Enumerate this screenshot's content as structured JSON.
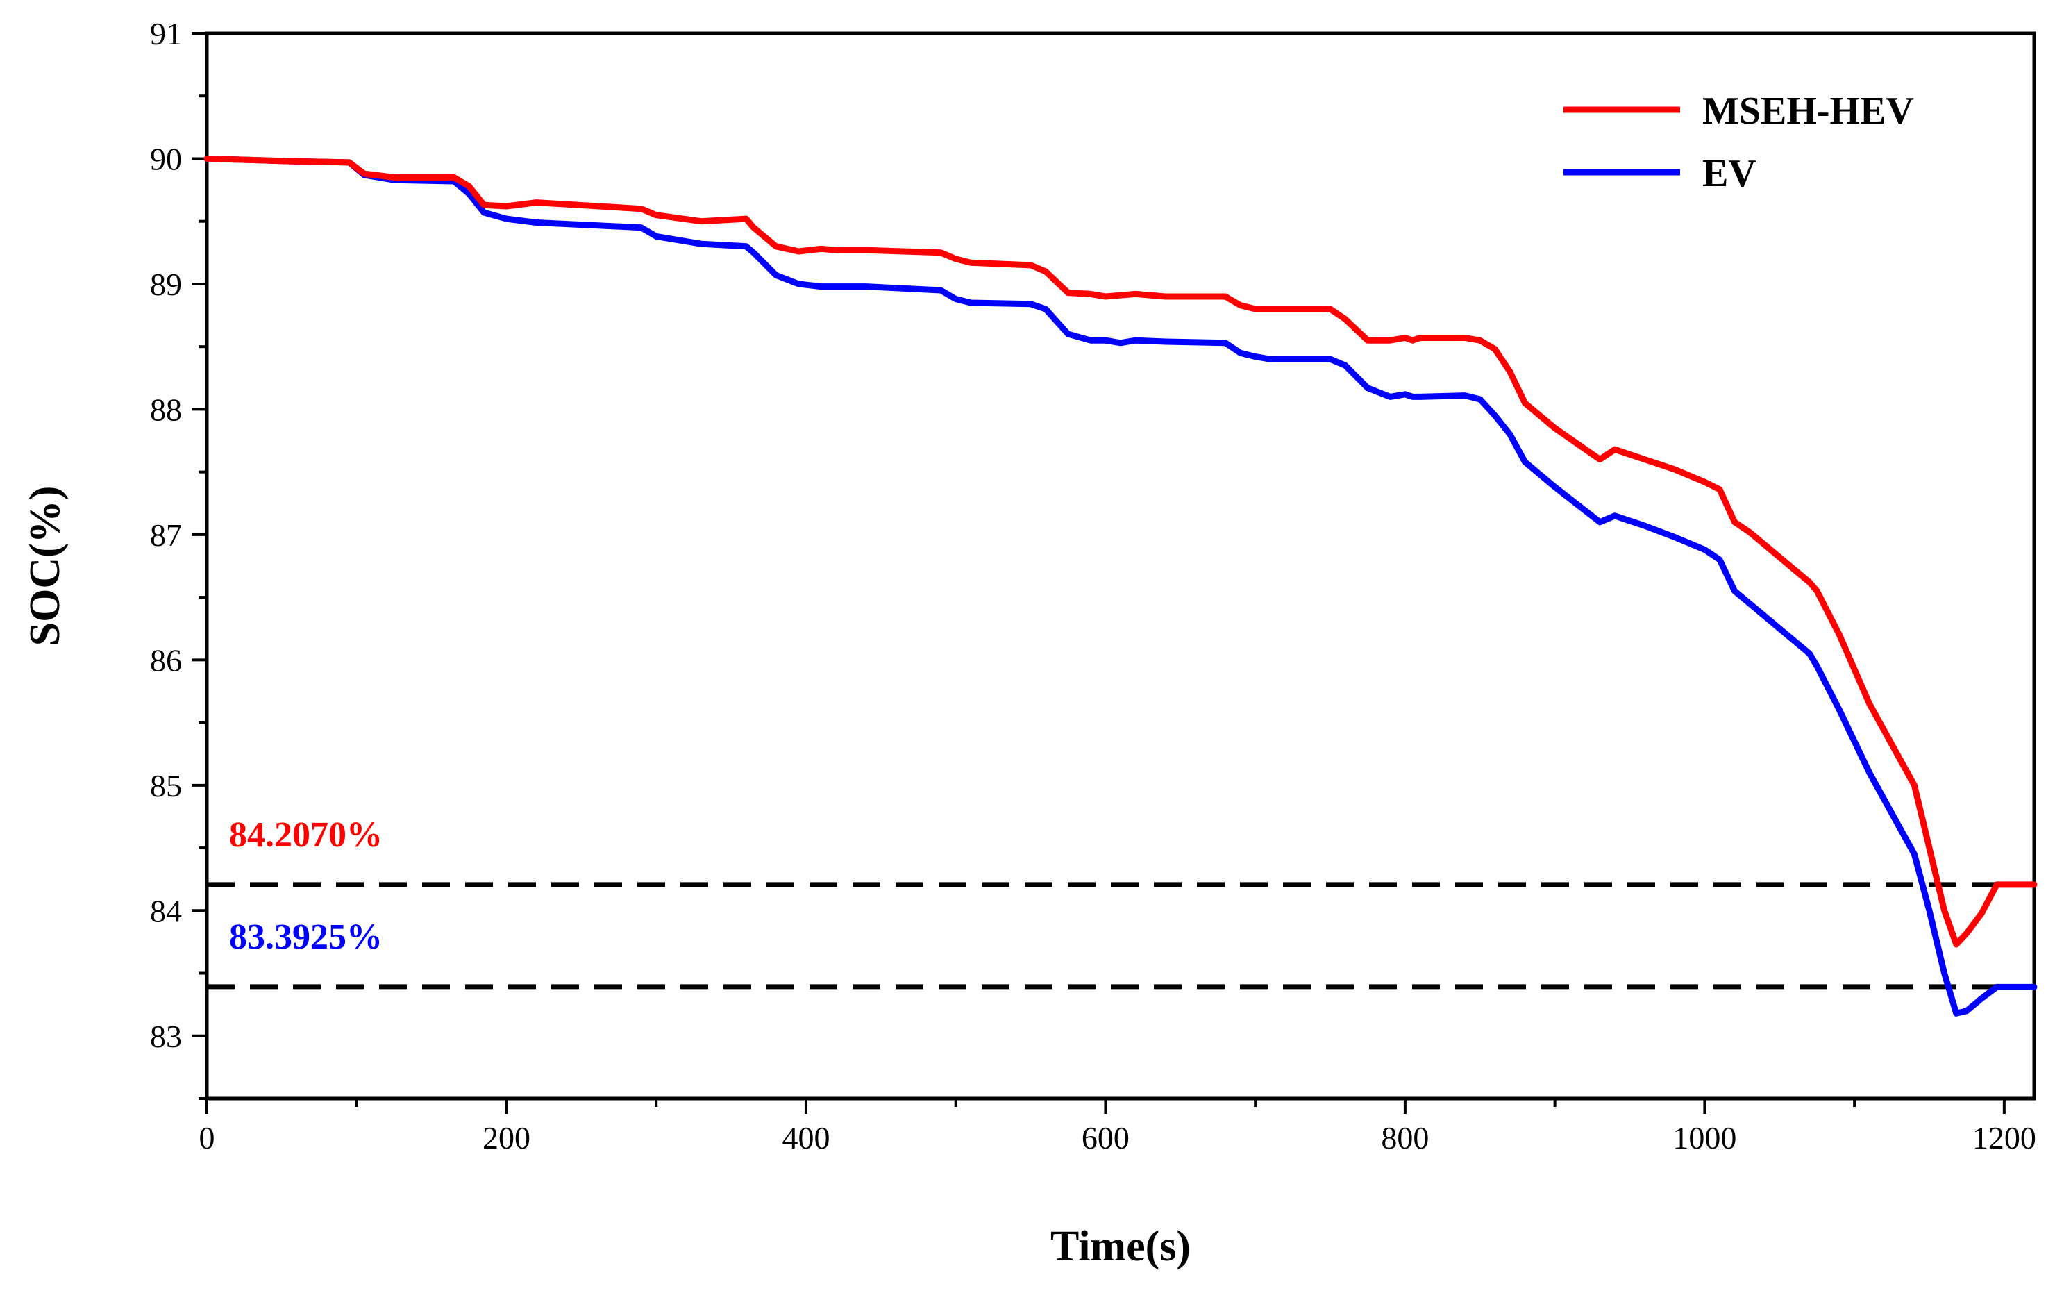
{
  "chart_data": {
    "type": "line",
    "title": "",
    "xlabel": "Time(s)",
    "ylabel": "SOC(%)",
    "xlim": [
      0,
      1220
    ],
    "ylim": [
      82.5,
      91
    ],
    "xticks": [
      0,
      200,
      400,
      600,
      800,
      1000,
      1200
    ],
    "yticks": [
      83,
      84,
      85,
      86,
      87,
      88,
      89,
      90,
      91
    ],
    "legend_position": "top-right",
    "series": [
      {
        "name": "MSEH-HEV",
        "color": "#ff0000",
        "x": [
          0,
          55,
          95,
          105,
          125,
          165,
          175,
          185,
          200,
          220,
          290,
          300,
          330,
          360,
          365,
          380,
          395,
          410,
          420,
          440,
          490,
          500,
          510,
          550,
          560,
          575,
          590,
          600,
          610,
          620,
          640,
          680,
          690,
          700,
          710,
          750,
          760,
          775,
          790,
          800,
          805,
          810,
          840,
          850,
          860,
          870,
          880,
          900,
          930,
          940,
          960,
          980,
          1000,
          1010,
          1020,
          1030,
          1070,
          1075,
          1090,
          1110,
          1140,
          1150,
          1160,
          1168,
          1175,
          1185,
          1195,
          1220
        ],
        "y": [
          90.0,
          89.98,
          89.97,
          89.88,
          89.85,
          89.85,
          89.78,
          89.63,
          89.62,
          89.65,
          89.6,
          89.55,
          89.5,
          89.52,
          89.45,
          89.3,
          89.26,
          89.28,
          89.27,
          89.27,
          89.25,
          89.2,
          89.17,
          89.15,
          89.1,
          88.93,
          88.92,
          88.9,
          88.91,
          88.92,
          88.9,
          88.9,
          88.83,
          88.8,
          88.8,
          88.8,
          88.72,
          88.55,
          88.55,
          88.57,
          88.55,
          88.57,
          88.57,
          88.55,
          88.48,
          88.3,
          88.05,
          87.85,
          87.6,
          87.68,
          87.6,
          87.52,
          87.42,
          87.36,
          87.1,
          87.02,
          86.62,
          86.55,
          86.2,
          85.65,
          85.0,
          84.5,
          84.0,
          83.73,
          83.82,
          83.98,
          84.207,
          84.207
        ]
      },
      {
        "name": "EV",
        "color": "#0000ff",
        "x": [
          0,
          55,
          95,
          105,
          125,
          165,
          175,
          185,
          200,
          220,
          290,
          300,
          330,
          360,
          365,
          380,
          395,
          410,
          420,
          440,
          490,
          500,
          510,
          550,
          560,
          575,
          590,
          600,
          610,
          620,
          640,
          680,
          690,
          700,
          710,
          750,
          760,
          775,
          790,
          800,
          805,
          810,
          840,
          850,
          860,
          870,
          880,
          900,
          930,
          940,
          960,
          980,
          1000,
          1010,
          1020,
          1030,
          1070,
          1075,
          1090,
          1110,
          1140,
          1150,
          1160,
          1168,
          1175,
          1185,
          1195,
          1220
        ],
        "y": [
          90.0,
          89.98,
          89.97,
          89.87,
          89.83,
          89.82,
          89.72,
          89.57,
          89.52,
          89.49,
          89.45,
          89.38,
          89.32,
          89.3,
          89.25,
          89.07,
          89.0,
          88.98,
          88.98,
          88.98,
          88.95,
          88.88,
          88.85,
          88.84,
          88.8,
          88.6,
          88.55,
          88.55,
          88.53,
          88.55,
          88.54,
          88.53,
          88.45,
          88.42,
          88.4,
          88.4,
          88.35,
          88.17,
          88.1,
          88.12,
          88.1,
          88.1,
          88.11,
          88.08,
          87.95,
          87.8,
          87.58,
          87.38,
          87.1,
          87.15,
          87.07,
          86.98,
          86.88,
          86.8,
          86.55,
          86.45,
          86.05,
          85.95,
          85.6,
          85.1,
          84.45,
          84.0,
          83.5,
          83.18,
          83.2,
          83.3,
          83.39,
          83.39
        ]
      }
    ],
    "reference_lines": [
      {
        "y": 84.207,
        "label": "84.2070%",
        "color": "#ff0000"
      },
      {
        "y": 83.3925,
        "label": "83.3925%",
        "color": "#0000ff"
      }
    ]
  }
}
